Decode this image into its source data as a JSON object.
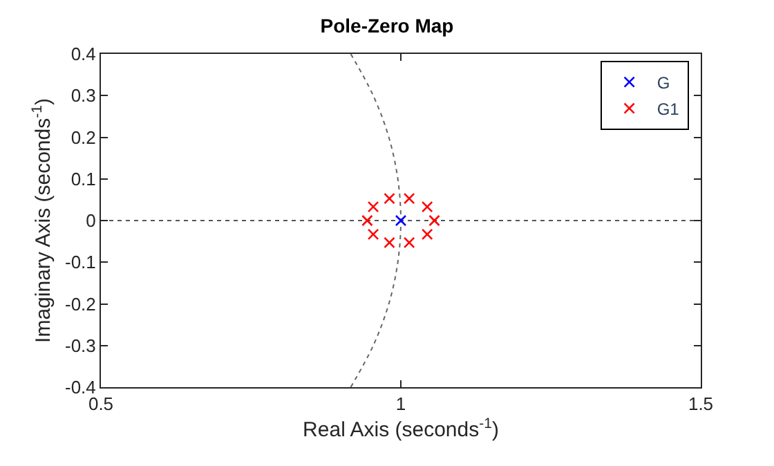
{
  "chart_data": {
    "type": "scatter",
    "title": "Pole-Zero Map",
    "xlabel": "Real Axis (seconds$^{-1}$)",
    "ylabel": "Imaginary Axis (seconds$^{-1}$)",
    "xlim": [
      0.5,
      1.5
    ],
    "xticks": [
      0.5,
      1,
      1.5
    ],
    "ylim": [
      -0.4,
      0.4
    ],
    "yticks": [
      -0.4,
      -0.3,
      -0.2,
      -0.1,
      0,
      0.1,
      0.2,
      0.3,
      0.4
    ],
    "grid": false,
    "legend": "top right",
    "marker": "cross",
    "ref_lines": [
      {
        "axis": "y",
        "value": 0,
        "color": "#555555",
        "line_style": "dotted"
      }
    ],
    "series": [
      {
        "type": "line",
        "color": "#666666",
        "line_style": "dotted",
        "marker": "none",
        "x": [
          0.9165,
          0.954,
          0.98,
          0.995,
          1.0,
          0.995,
          0.98,
          0.954,
          0.9165
        ],
        "values": [
          -0.4,
          -0.3,
          -0.2,
          -0.1,
          0,
          0.1,
          0.2,
          0.3,
          0.4
        ]
      },
      {
        "name": "G",
        "color": "#0000ff",
        "x": [
          1.0
        ],
        "values": [
          0
        ]
      },
      {
        "name": "G1",
        "color": "#ff0000",
        "x": [
          0.944,
          0.954,
          0.981,
          1.014,
          1.044,
          1.056,
          1.044,
          1.014,
          0.981,
          0.954
        ],
        "values": [
          0,
          0.033,
          0.053,
          0.053,
          0.033,
          0,
          -0.033,
          -0.053,
          -0.053,
          -0.033
        ]
      }
    ]
  }
}
